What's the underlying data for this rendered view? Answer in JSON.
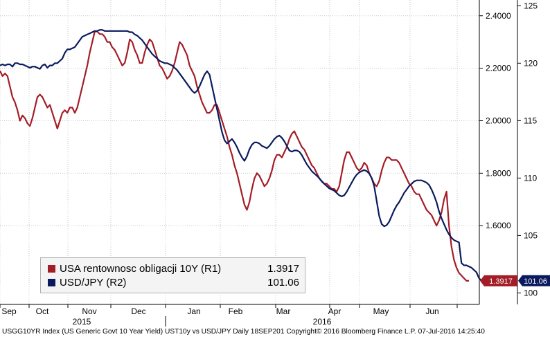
{
  "chart_data": {
    "type": "line",
    "x_ticks": [
      "Sep",
      "Oct",
      "Nov",
      "Dec",
      "Jan",
      "Feb",
      "Mar",
      "Apr",
      "May",
      "Jun"
    ],
    "year_labels": [
      "2015",
      "2016"
    ],
    "axes": {
      "left": {
        "ticks": [
          "2.4000",
          "2.2000",
          "2.0000",
          "1.8000",
          "1.6000"
        ],
        "range": [
          1.3,
          2.46
        ]
      },
      "right": {
        "ticks": [
          "125",
          "120",
          "115",
          "110",
          "105",
          "100"
        ],
        "range": [
          99.0,
          125.5
        ]
      }
    },
    "grid": true,
    "legend_position": "bottom-left",
    "series": [
      {
        "name": "USA rentownosc obligacji 10Y (R1)",
        "axis": "left",
        "color": "#a31d27",
        "last_value": "1.3917",
        "values": [
          2.19,
          2.17,
          2.18,
          2.17,
          2.13,
          2.09,
          2.07,
          2.04,
          2.0,
          2.02,
          2.01,
          1.99,
          1.98,
          2.01,
          2.05,
          2.09,
          2.1,
          2.09,
          2.07,
          2.05,
          2.06,
          2.03,
          2.0,
          1.97,
          2.0,
          2.03,
          2.04,
          2.03,
          2.05,
          2.05,
          2.03,
          2.05,
          2.09,
          2.13,
          2.17,
          2.21,
          2.26,
          2.3,
          2.34,
          2.34,
          2.33,
          2.33,
          2.32,
          2.3,
          2.3,
          2.28,
          2.27,
          2.25,
          2.23,
          2.21,
          2.22,
          2.26,
          2.31,
          2.3,
          2.27,
          2.25,
          2.22,
          2.22,
          2.26,
          2.29,
          2.31,
          2.3,
          2.27,
          2.24,
          2.21,
          2.2,
          2.18,
          2.16,
          2.17,
          2.19,
          2.22,
          2.26,
          2.3,
          2.29,
          2.27,
          2.25,
          2.21,
          2.19,
          2.17,
          2.13,
          2.1,
          2.07,
          2.05,
          2.03,
          2.03,
          2.04,
          2.06,
          2.06,
          2.03,
          2.0,
          1.97,
          1.94,
          1.9,
          1.87,
          1.83,
          1.8,
          1.76,
          1.72,
          1.68,
          1.66,
          1.69,
          1.74,
          1.78,
          1.8,
          1.79,
          1.77,
          1.75,
          1.76,
          1.78,
          1.81,
          1.85,
          1.87,
          1.87,
          1.86,
          1.88,
          1.9,
          1.93,
          1.95,
          1.96,
          1.94,
          1.92,
          1.9,
          1.89,
          1.87,
          1.85,
          1.83,
          1.82,
          1.8,
          1.78,
          1.77,
          1.76,
          1.76,
          1.75,
          1.74,
          1.74,
          1.73,
          1.75,
          1.8,
          1.85,
          1.88,
          1.88,
          1.86,
          1.84,
          1.82,
          1.81,
          1.82,
          1.84,
          1.83,
          1.8,
          1.78,
          1.76,
          1.75,
          1.77,
          1.81,
          1.84,
          1.86,
          1.86,
          1.85,
          1.85,
          1.85,
          1.84,
          1.82,
          1.8,
          1.78,
          1.76,
          1.75,
          1.73,
          1.72,
          1.72,
          1.7,
          1.68,
          1.66,
          1.65,
          1.64,
          1.62,
          1.6,
          1.62,
          1.65,
          1.7,
          1.73,
          1.6,
          1.52,
          1.47,
          1.44,
          1.42,
          1.41,
          1.4,
          1.39,
          1.39
        ]
      },
      {
        "name": "USD/JPY (R2)",
        "axis": "right",
        "color": "#0a1a5e",
        "last_value": "101.06",
        "values": [
          119.8,
          119.9,
          119.8,
          119.9,
          119.9,
          119.7,
          120.0,
          120.0,
          119.9,
          119.9,
          119.8,
          119.7,
          119.6,
          119.7,
          119.7,
          119.6,
          119.5,
          119.8,
          119.9,
          119.6,
          119.8,
          119.8,
          120.0,
          120.0,
          120.2,
          120.4,
          120.9,
          121.2,
          121.2,
          121.3,
          121.4,
          121.7,
          122.0,
          122.3,
          122.4,
          122.5,
          122.6,
          122.7,
          122.8,
          122.8,
          122.9,
          122.9,
          122.8,
          122.8,
          122.8,
          122.8,
          122.8,
          122.8,
          122.8,
          122.8,
          122.8,
          122.8,
          122.7,
          122.7,
          122.5,
          122.4,
          122.2,
          122.0,
          121.7,
          121.4,
          121.1,
          120.8,
          120.6,
          120.4,
          120.2,
          120.1,
          120.0,
          120.0,
          119.9,
          119.8,
          119.6,
          119.4,
          119.1,
          118.8,
          118.5,
          118.2,
          117.9,
          117.6,
          117.4,
          117.6,
          118.0,
          118.5,
          119.0,
          119.3,
          119.0,
          118.0,
          117.0,
          116.0,
          115.0,
          114.0,
          113.3,
          113.0,
          113.2,
          113.4,
          113.1,
          112.7,
          112.2,
          111.8,
          111.5,
          111.9,
          112.5,
          112.9,
          113.1,
          113.1,
          113.0,
          112.8,
          112.7,
          112.6,
          112.8,
          113.1,
          113.4,
          113.6,
          113.7,
          113.5,
          113.2,
          112.8,
          112.4,
          112.3,
          112.4,
          112.4,
          112.3,
          112.0,
          111.6,
          111.2,
          110.9,
          110.6,
          110.4,
          110.2,
          110.0,
          109.7,
          109.5,
          109.3,
          109.1,
          109.0,
          108.9,
          108.7,
          108.5,
          108.4,
          108.5,
          108.8,
          109.2,
          109.6,
          110.0,
          110.3,
          110.5,
          110.6,
          110.7,
          110.6,
          110.4,
          110.0,
          109.3,
          108.0,
          106.7,
          106.0,
          105.8,
          105.9,
          106.2,
          106.7,
          107.2,
          107.6,
          107.9,
          108.3,
          108.7,
          109.0,
          109.3,
          109.5,
          109.7,
          109.8,
          109.8,
          109.8,
          109.7,
          109.6,
          109.4,
          109.0,
          108.5,
          107.9,
          107.1,
          106.5,
          106.0,
          105.5,
          105.1,
          104.8,
          104.6,
          104.5,
          104.4,
          102.6,
          102.4,
          102.4,
          102.3,
          102.2,
          102.0,
          101.8,
          101.3,
          101.06
        ]
      }
    ]
  },
  "legend": {
    "entries": [
      {
        "name": "USA rentownosc obligacji 10Y (R1)",
        "value": "1.3917"
      },
      {
        "name": "USD/JPY (R2)",
        "value": "101.06"
      }
    ]
  },
  "markers": {
    "left": "1.3917",
    "right": "101.06"
  },
  "footer": "USGG10YR Index (US Generic Govt 10 Year Yield) UST10y vs USD/JPY  Daily 18SEP201  Copyright© 2016 Bloomberg Finance L.P.   07-Jul-2016 14:25:40"
}
